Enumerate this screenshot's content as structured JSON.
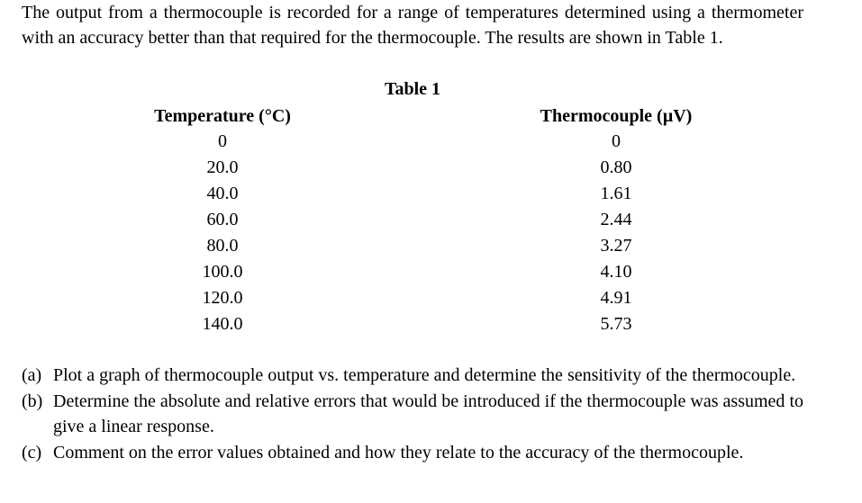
{
  "intro": "The output from a thermocouple is recorded for a range of temperatures determined using a thermometer with an accuracy better than that required for the thermocouple. The results are shown in Table 1.",
  "table": {
    "caption": "Table 1",
    "headers": [
      "Temperature (°C)",
      "Thermocouple (µV)"
    ],
    "temperature": [
      "0",
      "20.0",
      "40.0",
      "60.0",
      "80.0",
      "100.0",
      "120.0",
      "140.0"
    ],
    "thermocouple": [
      "0",
      "0.80",
      "1.61",
      "2.44",
      "3.27",
      "4.10",
      "4.91",
      "5.73"
    ]
  },
  "questions": [
    {
      "marker": "(a)",
      "text": "Plot a graph of thermocouple output vs. temperature and determine the sensitivity of the thermocouple."
    },
    {
      "marker": "(b)",
      "text": "Determine the absolute and relative errors that would be introduced if the thermocouple was assumed to give a linear response."
    },
    {
      "marker": "(c)",
      "text": "Comment on the error values obtained and how they relate to the accuracy of the thermocouple."
    }
  ]
}
